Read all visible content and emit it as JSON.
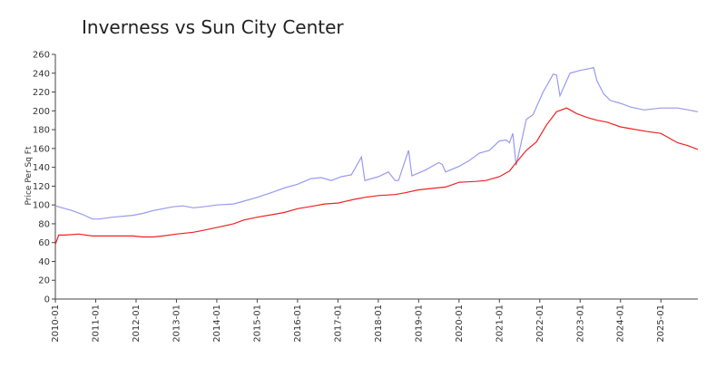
{
  "chart_data": {
    "type": "line",
    "title": "Inverness vs Sun City Center",
    "xlabel": "",
    "ylabel": "Price Per Sq Ft",
    "ylim": [
      0,
      260
    ],
    "yticks": [
      0,
      20,
      40,
      60,
      80,
      100,
      120,
      140,
      160,
      180,
      200,
      220,
      240,
      260
    ],
    "xlim": [
      "2010-01",
      "2025-12"
    ],
    "xticks": [
      "2010-01",
      "2011-01",
      "2012-01",
      "2013-01",
      "2014-01",
      "2015-01",
      "2016-01",
      "2017-01",
      "2018-01",
      "2019-01",
      "2020-01",
      "2021-01",
      "2022-01",
      "2023-01",
      "2024-01",
      "2025-01"
    ],
    "grid": false,
    "legend": "none",
    "series": [
      {
        "color": "#9999ee",
        "points": [
          [
            "2010-01",
            99
          ],
          [
            "2010-06",
            94
          ],
          [
            "2010-09",
            90
          ],
          [
            "2010-12",
            85
          ],
          [
            "2011-02",
            85
          ],
          [
            "2011-06",
            87
          ],
          [
            "2011-12",
            89
          ],
          [
            "2012-03",
            91
          ],
          [
            "2012-06",
            94
          ],
          [
            "2012-09",
            96
          ],
          [
            "2012-12",
            98
          ],
          [
            "2013-03",
            99
          ],
          [
            "2013-06",
            97
          ],
          [
            "2013-09",
            98
          ],
          [
            "2014-01",
            100
          ],
          [
            "2014-06",
            101
          ],
          [
            "2014-09",
            104
          ],
          [
            "2015-01",
            108
          ],
          [
            "2015-06",
            114
          ],
          [
            "2015-09",
            118
          ],
          [
            "2016-01",
            122
          ],
          [
            "2016-03",
            125
          ],
          [
            "2016-05",
            128
          ],
          [
            "2016-08",
            129
          ],
          [
            "2016-11",
            126
          ],
          [
            "2017-02",
            130
          ],
          [
            "2017-05",
            132
          ],
          [
            "2017-08",
            151
          ],
          [
            "2017-09",
            126
          ],
          [
            "2018-01",
            130
          ],
          [
            "2018-04",
            135
          ],
          [
            "2018-06",
            126
          ],
          [
            "2018-07",
            126
          ],
          [
            "2018-10",
            158
          ],
          [
            "2018-11",
            131
          ],
          [
            "2019-03",
            137
          ],
          [
            "2019-07",
            145
          ],
          [
            "2019-08",
            143
          ],
          [
            "2019-09",
            135
          ],
          [
            "2020-01",
            141
          ],
          [
            "2020-04",
            147
          ],
          [
            "2020-07",
            155
          ],
          [
            "2020-10",
            158
          ],
          [
            "2021-01",
            168
          ],
          [
            "2021-03",
            169
          ],
          [
            "2021-04",
            166
          ],
          [
            "2021-05",
            176
          ],
          [
            "2021-06",
            142
          ],
          [
            "2021-09",
            191
          ],
          [
            "2021-11",
            196
          ],
          [
            "2022-02",
            220
          ],
          [
            "2022-05",
            239
          ],
          [
            "2022-06",
            238
          ],
          [
            "2022-07",
            216
          ],
          [
            "2022-10",
            240
          ],
          [
            "2023-01",
            243
          ],
          [
            "2023-04",
            245
          ],
          [
            "2023-05",
            246
          ],
          [
            "2023-06",
            232
          ],
          [
            "2023-08",
            218
          ],
          [
            "2023-10",
            211
          ],
          [
            "2024-01",
            208
          ],
          [
            "2024-04",
            204
          ],
          [
            "2024-08",
            201
          ],
          [
            "2025-01",
            203
          ],
          [
            "2025-06",
            203
          ],
          [
            "2025-12",
            199
          ]
        ]
      },
      {
        "color": "#ee2222",
        "points": [
          [
            "2010-01",
            58
          ],
          [
            "2010-02",
            68
          ],
          [
            "2010-04",
            68
          ],
          [
            "2010-08",
            69
          ],
          [
            "2010-12",
            67
          ],
          [
            "2011-06",
            67
          ],
          [
            "2011-12",
            67
          ],
          [
            "2012-03",
            66
          ],
          [
            "2012-06",
            66
          ],
          [
            "2012-09",
            67
          ],
          [
            "2013-01",
            69
          ],
          [
            "2013-06",
            71
          ],
          [
            "2013-09",
            73
          ],
          [
            "2014-01",
            76
          ],
          [
            "2014-06",
            80
          ],
          [
            "2014-09",
            84
          ],
          [
            "2015-01",
            87
          ],
          [
            "2015-06",
            90
          ],
          [
            "2015-09",
            92
          ],
          [
            "2016-01",
            96
          ],
          [
            "2016-06",
            99
          ],
          [
            "2016-09",
            101
          ],
          [
            "2017-01",
            102
          ],
          [
            "2017-06",
            106
          ],
          [
            "2017-09",
            108
          ],
          [
            "2018-01",
            110
          ],
          [
            "2018-06",
            111
          ],
          [
            "2018-09",
            113
          ],
          [
            "2019-01",
            116
          ],
          [
            "2019-06",
            118
          ],
          [
            "2019-09",
            119
          ],
          [
            "2020-01",
            124
          ],
          [
            "2020-06",
            125
          ],
          [
            "2020-09",
            126
          ],
          [
            "2021-01",
            130
          ],
          [
            "2021-04",
            136
          ],
          [
            "2021-06",
            145
          ],
          [
            "2021-09",
            158
          ],
          [
            "2021-12",
            167
          ],
          [
            "2022-03",
            185
          ],
          [
            "2022-06",
            199
          ],
          [
            "2022-09",
            203
          ],
          [
            "2022-12",
            197
          ],
          [
            "2023-03",
            193
          ],
          [
            "2023-06",
            190
          ],
          [
            "2023-09",
            188
          ],
          [
            "2024-01",
            183
          ],
          [
            "2024-04",
            181
          ],
          [
            "2024-09",
            178
          ],
          [
            "2025-01",
            176
          ],
          [
            "2025-06",
            166
          ],
          [
            "2025-09",
            163
          ],
          [
            "2025-12",
            159
          ]
        ]
      }
    ]
  }
}
